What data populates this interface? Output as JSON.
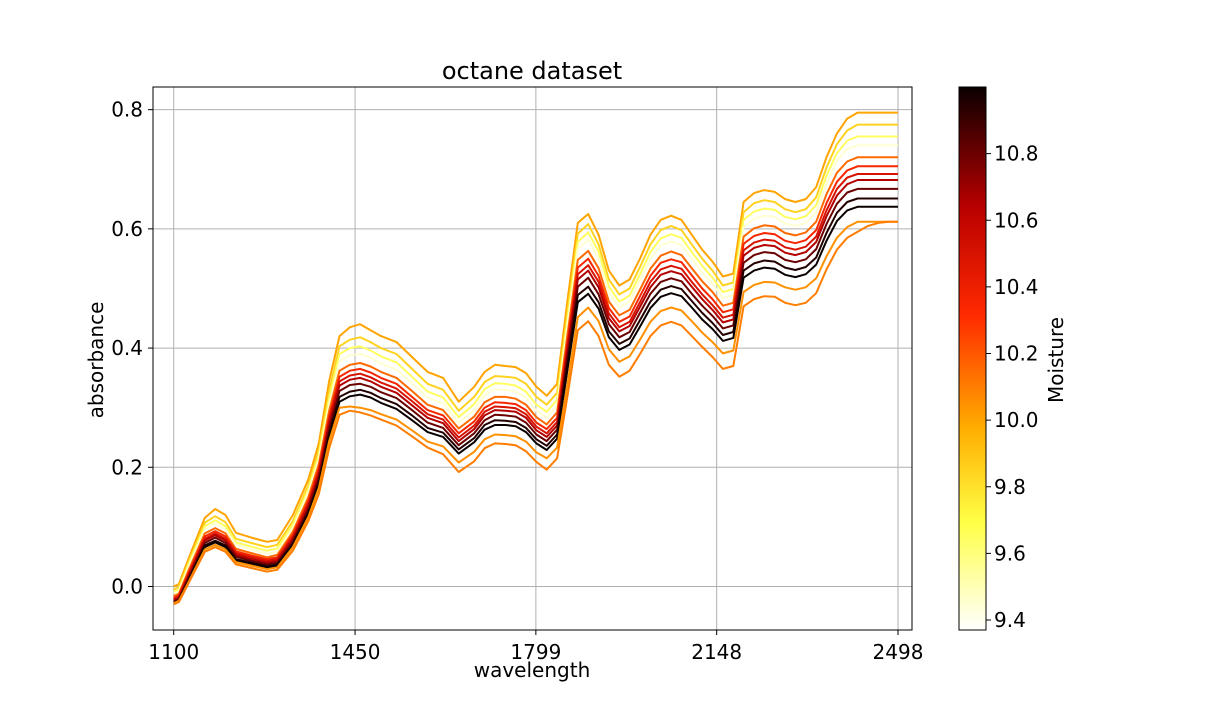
{
  "chart_data": {
    "type": "line",
    "title": "octane dataset",
    "xlabel": "wavelength",
    "ylabel": "absorbance",
    "xlim": [
      1060,
      2525
    ],
    "ylim": [
      -0.073,
      0.838
    ],
    "xticks": [
      1100,
      1450,
      1799,
      2148,
      2498
    ],
    "yticks": [
      0.0,
      0.2,
      0.4,
      0.6,
      0.8
    ],
    "ytick_labels": [
      "0.0",
      "0.2",
      "0.4",
      "0.6",
      "0.8"
    ],
    "grid": true,
    "colorbar": {
      "label": "Moisture",
      "colormap": "hot_r",
      "range": [
        9.37,
        11.0
      ],
      "ticks": [
        9.4,
        9.6,
        9.8,
        10.0,
        10.2,
        10.4,
        10.6,
        10.8
      ],
      "tick_labels": [
        "9.4",
        "9.6",
        "9.8",
        "10.0",
        "10.2",
        "10.4",
        "10.6",
        "10.8"
      ]
    },
    "x": [
      1100,
      1110,
      1130,
      1160,
      1180,
      1200,
      1220,
      1250,
      1280,
      1300,
      1330,
      1360,
      1380,
      1400,
      1420,
      1440,
      1460,
      1480,
      1500,
      1530,
      1560,
      1590,
      1620,
      1650,
      1680,
      1700,
      1720,
      1740,
      1760,
      1780,
      1800,
      1820,
      1840,
      1860,
      1880,
      1900,
      1920,
      1940,
      1960,
      1980,
      2000,
      2020,
      2040,
      2060,
      2080,
      2100,
      2120,
      2140,
      2160,
      2180,
      2200,
      2220,
      2240,
      2260,
      2280,
      2300,
      2320,
      2340,
      2360,
      2380,
      2400,
      2420,
      2440,
      2460,
      2480,
      2498
    ],
    "series": [
      {
        "moisture": 10.0,
        "values": [
          0.0,
          0.004,
          0.05,
          0.115,
          0.13,
          0.12,
          0.09,
          0.082,
          0.075,
          0.078,
          0.12,
          0.18,
          0.24,
          0.345,
          0.42,
          0.435,
          0.44,
          0.43,
          0.42,
          0.41,
          0.385,
          0.36,
          0.35,
          0.31,
          0.335,
          0.36,
          0.372,
          0.37,
          0.368,
          0.358,
          0.335,
          0.32,
          0.34,
          0.48,
          0.61,
          0.625,
          0.59,
          0.53,
          0.505,
          0.515,
          0.55,
          0.59,
          0.615,
          0.622,
          0.615,
          0.59,
          0.565,
          0.545,
          0.52,
          0.525,
          0.645,
          0.66,
          0.665,
          0.662,
          0.65,
          0.645,
          0.65,
          0.67,
          0.72,
          0.76,
          0.785,
          0.795,
          0.795,
          0.795,
          0.795,
          0.795
        ]
      },
      {
        "moisture": 9.85,
        "values": [
          -0.005,
          -0.001,
          0.045,
          0.107,
          0.118,
          0.108,
          0.08,
          0.073,
          0.066,
          0.07,
          0.11,
          0.17,
          0.228,
          0.328,
          0.403,
          0.414,
          0.418,
          0.41,
          0.4,
          0.39,
          0.365,
          0.34,
          0.33,
          0.295,
          0.318,
          0.343,
          0.353,
          0.352,
          0.35,
          0.34,
          0.318,
          0.305,
          0.325,
          0.462,
          0.592,
          0.608,
          0.574,
          0.515,
          0.49,
          0.5,
          0.536,
          0.574,
          0.598,
          0.605,
          0.598,
          0.574,
          0.55,
          0.53,
          0.505,
          0.51,
          0.628,
          0.643,
          0.648,
          0.645,
          0.633,
          0.628,
          0.633,
          0.653,
          0.703,
          0.742,
          0.765,
          0.775,
          0.775,
          0.775,
          0.775,
          0.775
        ]
      },
      {
        "moisture": 9.65,
        "values": [
          -0.009,
          -0.005,
          0.04,
          0.101,
          0.111,
          0.101,
          0.074,
          0.067,
          0.06,
          0.064,
          0.104,
          0.164,
          0.22,
          0.316,
          0.39,
          0.4,
          0.403,
          0.396,
          0.386,
          0.376,
          0.352,
          0.327,
          0.317,
          0.284,
          0.306,
          0.331,
          0.341,
          0.34,
          0.337,
          0.327,
          0.305,
          0.293,
          0.313,
          0.449,
          0.578,
          0.594,
          0.562,
          0.503,
          0.478,
          0.488,
          0.524,
          0.561,
          0.584,
          0.591,
          0.585,
          0.561,
          0.538,
          0.518,
          0.494,
          0.499,
          0.615,
          0.629,
          0.634,
          0.632,
          0.62,
          0.616,
          0.621,
          0.64,
          0.689,
          0.727,
          0.748,
          0.755,
          0.755,
          0.755,
          0.755,
          0.755
        ]
      },
      {
        "moisture": 9.45,
        "values": [
          -0.012,
          -0.008,
          0.036,
          0.096,
          0.106,
          0.096,
          0.07,
          0.062,
          0.055,
          0.058,
          0.098,
          0.158,
          0.213,
          0.306,
          0.378,
          0.388,
          0.39,
          0.384,
          0.374,
          0.364,
          0.341,
          0.317,
          0.307,
          0.275,
          0.296,
          0.321,
          0.331,
          0.33,
          0.327,
          0.317,
          0.295,
          0.283,
          0.303,
          0.438,
          0.566,
          0.582,
          0.551,
          0.493,
          0.468,
          0.478,
          0.514,
          0.55,
          0.572,
          0.579,
          0.573,
          0.55,
          0.527,
          0.508,
          0.484,
          0.489,
          0.603,
          0.617,
          0.622,
          0.62,
          0.609,
          0.605,
          0.61,
          0.628,
          0.676,
          0.714,
          0.734,
          0.74,
          0.74,
          0.74,
          0.74,
          0.74
        ]
      },
      {
        "moisture": 10.15,
        "values": [
          -0.016,
          -0.012,
          0.03,
          0.089,
          0.098,
          0.089,
          0.063,
          0.056,
          0.049,
          0.053,
          0.092,
          0.15,
          0.205,
          0.295,
          0.362,
          0.372,
          0.375,
          0.369,
          0.36,
          0.35,
          0.328,
          0.305,
          0.296,
          0.265,
          0.285,
          0.309,
          0.318,
          0.318,
          0.315,
          0.305,
          0.284,
          0.272,
          0.292,
          0.423,
          0.548,
          0.563,
          0.534,
          0.478,
          0.455,
          0.464,
          0.498,
          0.533,
          0.555,
          0.562,
          0.556,
          0.534,
          0.512,
          0.494,
          0.471,
          0.476,
          0.587,
          0.601,
          0.606,
          0.604,
          0.593,
          0.589,
          0.594,
          0.612,
          0.658,
          0.694,
          0.713,
          0.72,
          0.72,
          0.72,
          0.72,
          0.72
        ]
      },
      {
        "moisture": 10.35,
        "values": [
          -0.019,
          -0.015,
          0.026,
          0.084,
          0.093,
          0.084,
          0.059,
          0.052,
          0.046,
          0.049,
          0.087,
          0.144,
          0.198,
          0.286,
          0.352,
          0.362,
          0.365,
          0.359,
          0.35,
          0.34,
          0.318,
          0.296,
          0.287,
          0.257,
          0.277,
          0.3,
          0.309,
          0.308,
          0.306,
          0.296,
          0.275,
          0.264,
          0.283,
          0.412,
          0.535,
          0.55,
          0.521,
          0.467,
          0.444,
          0.453,
          0.487,
          0.521,
          0.543,
          0.549,
          0.544,
          0.522,
          0.5,
          0.482,
          0.46,
          0.465,
          0.575,
          0.588,
          0.593,
          0.591,
          0.58,
          0.576,
          0.581,
          0.598,
          0.643,
          0.679,
          0.698,
          0.705,
          0.705,
          0.705,
          0.705,
          0.705
        ]
      },
      {
        "moisture": 10.5,
        "values": [
          -0.021,
          -0.017,
          0.023,
          0.08,
          0.089,
          0.08,
          0.056,
          0.049,
          0.043,
          0.046,
          0.083,
          0.139,
          0.192,
          0.279,
          0.344,
          0.354,
          0.357,
          0.351,
          0.342,
          0.332,
          0.311,
          0.289,
          0.28,
          0.25,
          0.27,
          0.293,
          0.302,
          0.301,
          0.299,
          0.289,
          0.268,
          0.257,
          0.276,
          0.403,
          0.524,
          0.539,
          0.511,
          0.458,
          0.435,
          0.444,
          0.477,
          0.511,
          0.532,
          0.538,
          0.533,
          0.511,
          0.49,
          0.472,
          0.451,
          0.456,
          0.564,
          0.577,
          0.582,
          0.58,
          0.569,
          0.565,
          0.57,
          0.587,
          0.631,
          0.667,
          0.686,
          0.692,
          0.692,
          0.692,
          0.692,
          0.692
        ]
      },
      {
        "moisture": 10.65,
        "values": [
          -0.023,
          -0.019,
          0.02,
          0.077,
          0.086,
          0.077,
          0.053,
          0.046,
          0.04,
          0.043,
          0.08,
          0.135,
          0.187,
          0.273,
          0.337,
          0.347,
          0.35,
          0.344,
          0.335,
          0.325,
          0.304,
          0.283,
          0.274,
          0.244,
          0.264,
          0.287,
          0.296,
          0.295,
          0.293,
          0.283,
          0.262,
          0.251,
          0.27,
          0.395,
          0.515,
          0.53,
          0.502,
          0.45,
          0.428,
          0.437,
          0.469,
          0.502,
          0.523,
          0.529,
          0.524,
          0.503,
          0.482,
          0.464,
          0.443,
          0.448,
          0.555,
          0.568,
          0.573,
          0.571,
          0.56,
          0.556,
          0.561,
          0.578,
          0.621,
          0.656,
          0.675,
          0.682,
          0.682,
          0.682,
          0.682,
          0.682
        ]
      },
      {
        "moisture": 10.8,
        "values": [
          -0.025,
          -0.021,
          0.017,
          0.073,
          0.082,
          0.073,
          0.05,
          0.043,
          0.037,
          0.04,
          0.076,
          0.13,
          0.181,
          0.265,
          0.328,
          0.338,
          0.34,
          0.335,
          0.326,
          0.316,
          0.296,
          0.275,
          0.266,
          0.237,
          0.257,
          0.279,
          0.288,
          0.287,
          0.285,
          0.275,
          0.255,
          0.244,
          0.263,
          0.385,
          0.503,
          0.518,
          0.49,
          0.44,
          0.418,
          0.427,
          0.459,
          0.491,
          0.511,
          0.517,
          0.512,
          0.491,
          0.471,
          0.454,
          0.433,
          0.438,
          0.543,
          0.556,
          0.561,
          0.559,
          0.548,
          0.544,
          0.549,
          0.566,
          0.608,
          0.642,
          0.661,
          0.667,
          0.667,
          0.667,
          0.667,
          0.667
        ]
      },
      {
        "moisture": 10.95,
        "values": [
          -0.027,
          -0.023,
          0.014,
          0.069,
          0.077,
          0.069,
          0.046,
          0.04,
          0.034,
          0.037,
          0.072,
          0.125,
          0.175,
          0.257,
          0.318,
          0.327,
          0.33,
          0.325,
          0.316,
          0.306,
          0.287,
          0.266,
          0.258,
          0.23,
          0.249,
          0.271,
          0.279,
          0.278,
          0.276,
          0.266,
          0.247,
          0.236,
          0.255,
          0.374,
          0.489,
          0.503,
          0.477,
          0.428,
          0.407,
          0.416,
          0.447,
          0.478,
          0.498,
          0.504,
          0.499,
          0.479,
          0.459,
          0.442,
          0.422,
          0.427,
          0.53,
          0.542,
          0.547,
          0.545,
          0.535,
          0.531,
          0.536,
          0.552,
          0.593,
          0.627,
          0.645,
          0.651,
          0.651,
          0.651,
          0.651,
          0.651
        ]
      },
      {
        "moisture": 11.0,
        "values": [
          -0.029,
          -0.025,
          0.012,
          0.066,
          0.074,
          0.066,
          0.044,
          0.038,
          0.032,
          0.035,
          0.069,
          0.121,
          0.17,
          0.25,
          0.31,
          0.319,
          0.322,
          0.317,
          0.308,
          0.298,
          0.279,
          0.259,
          0.251,
          0.223,
          0.242,
          0.263,
          0.271,
          0.271,
          0.269,
          0.259,
          0.24,
          0.229,
          0.248,
          0.364,
          0.477,
          0.491,
          0.466,
          0.418,
          0.397,
          0.406,
          0.436,
          0.467,
          0.486,
          0.492,
          0.487,
          0.468,
          0.448,
          0.432,
          0.412,
          0.417,
          0.518,
          0.53,
          0.535,
          0.533,
          0.523,
          0.519,
          0.524,
          0.54,
          0.58,
          0.613,
          0.631,
          0.637,
          0.637,
          0.637,
          0.637,
          0.637
        ]
      },
      {
        "moisture": 10.05,
        "values": [
          -0.028,
          -0.024,
          0.01,
          0.062,
          0.07,
          0.062,
          0.041,
          0.035,
          0.029,
          0.032,
          0.066,
          0.117,
          0.165,
          0.244,
          0.3,
          0.302,
          0.3,
          0.296,
          0.289,
          0.28,
          0.262,
          0.243,
          0.235,
          0.208,
          0.226,
          0.247,
          0.255,
          0.254,
          0.252,
          0.243,
          0.225,
          0.215,
          0.233,
          0.34,
          0.452,
          0.468,
          0.445,
          0.398,
          0.377,
          0.386,
          0.414,
          0.444,
          0.462,
          0.468,
          0.463,
          0.445,
          0.426,
          0.41,
          0.391,
          0.396,
          0.494,
          0.506,
          0.511,
          0.51,
          0.502,
          0.498,
          0.502,
          0.517,
          0.554,
          0.585,
          0.603,
          0.612,
          0.612,
          0.612,
          0.612,
          0.612
        ]
      },
      {
        "moisture": 10.1,
        "values": [
          -0.03,
          -0.026,
          0.008,
          0.058,
          0.066,
          0.058,
          0.037,
          0.031,
          0.025,
          0.028,
          0.06,
          0.11,
          0.155,
          0.232,
          0.288,
          0.295,
          0.292,
          0.287,
          0.28,
          0.27,
          0.252,
          0.233,
          0.222,
          0.192,
          0.21,
          0.232,
          0.24,
          0.239,
          0.237,
          0.227,
          0.209,
          0.196,
          0.215,
          0.32,
          0.43,
          0.445,
          0.42,
          0.372,
          0.352,
          0.362,
          0.39,
          0.42,
          0.438,
          0.444,
          0.438,
          0.42,
          0.402,
          0.385,
          0.365,
          0.37,
          0.47,
          0.482,
          0.487,
          0.486,
          0.476,
          0.472,
          0.476,
          0.492,
          0.532,
          0.565,
          0.585,
          0.595,
          0.605,
          0.61,
          0.612,
          0.612
        ]
      }
    ]
  }
}
